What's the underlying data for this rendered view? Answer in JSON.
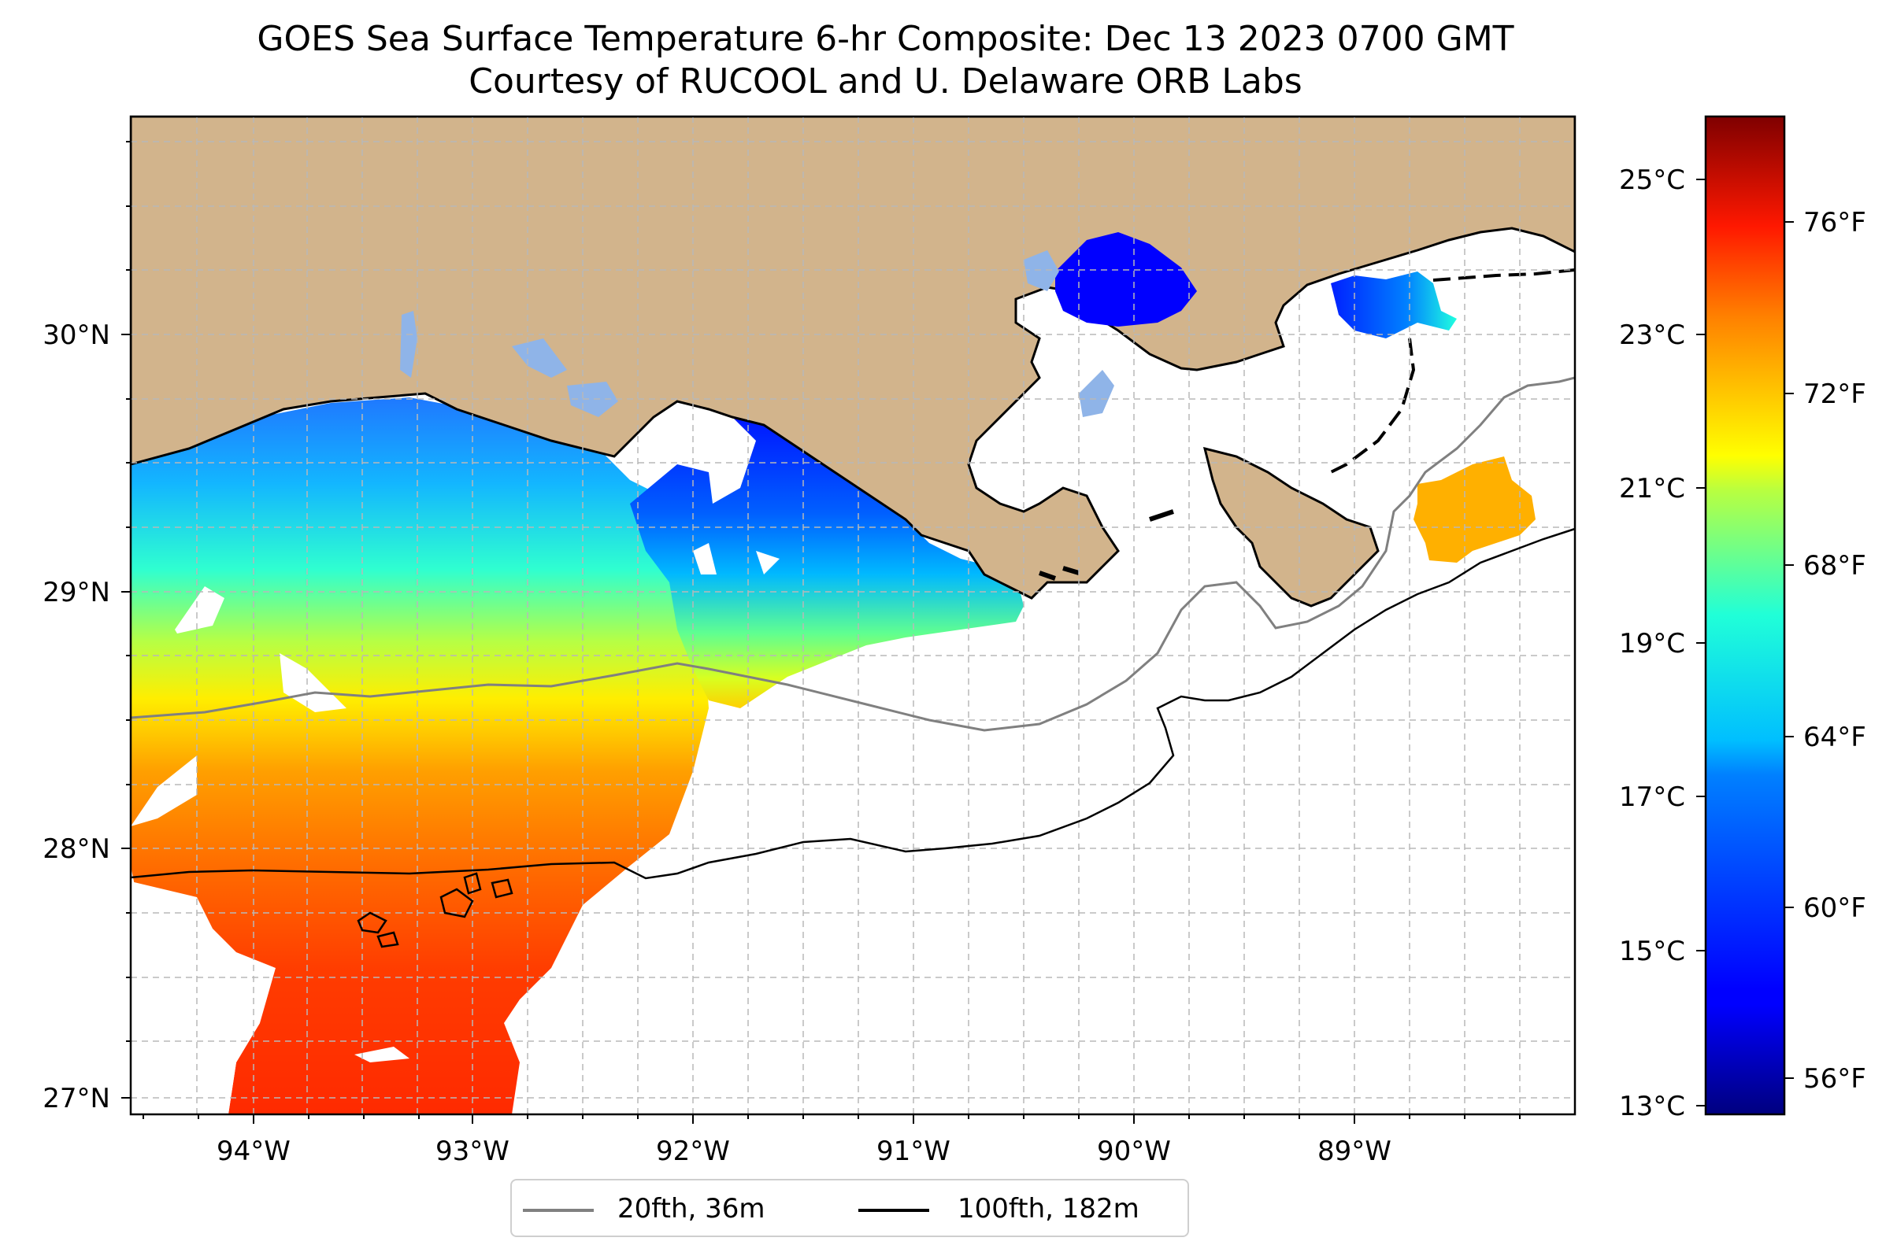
{
  "title": "GOES Sea Surface Temperature 6-hr Composite: Dec 13 2023 0700 GMT",
  "subtitle": "Courtesy of RUCOOL and U. Delaware ORB Labs",
  "map": {
    "lon_range": [
      -94.55,
      -88.25
    ],
    "lat_range": [
      26.93,
      30.83
    ],
    "lon_ticks": [
      "94°W",
      "93°W",
      "92°W",
      "91°W",
      "90°W",
      "89°W"
    ],
    "lat_ticks": [
      "30°N",
      "29°N",
      "28°N",
      "27°N"
    ],
    "land_color": "#d2b48c",
    "grid": true
  },
  "colorbar": {
    "colormap": "jet",
    "celsius_ticks": [
      "25°C",
      "23°C",
      "21°C",
      "19°C",
      "17°C",
      "15°C",
      "13°C"
    ],
    "fahrenheit_ticks": [
      "76°F",
      "72°F",
      "68°F",
      "64°F",
      "60°F",
      "56°F"
    ],
    "min_celsius": 13,
    "max_celsius": 26
  },
  "legend": {
    "items": [
      {
        "label": "20fth, 36m",
        "color": "#808080"
      },
      {
        "label": "100fth, 182m",
        "color": "#000000"
      }
    ]
  }
}
